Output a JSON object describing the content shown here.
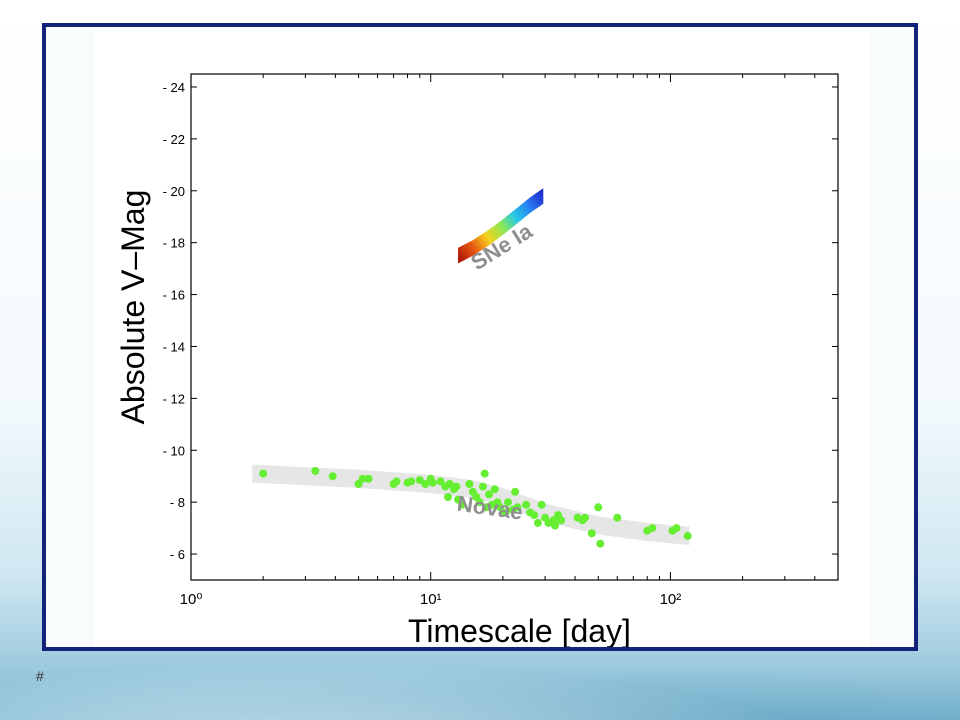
{
  "slide_number": "#",
  "chart_data": {
    "type": "scatter",
    "title": "",
    "xlabel": "Timescale [day]",
    "ylabel": "Absolute V–Mag",
    "xscale": "log",
    "xlim": [
      1,
      500
    ],
    "ylim": [
      5,
      24.5
    ],
    "y_ticks": [
      6,
      8,
      10,
      12,
      14,
      16,
      18,
      20,
      22,
      24
    ],
    "y_tick_labels": [
      "- 6",
      "- 8",
      "- 10",
      "- 12",
      "- 14",
      "- 16",
      "- 18",
      "- 20",
      "- 22",
      "- 24"
    ],
    "x_ticks": [
      1,
      10,
      100
    ],
    "x_tick_labels": [
      "10⁰",
      "10¹",
      "10²"
    ],
    "grid": false,
    "annotations": [
      {
        "text": "SNe Ia",
        "x": 20.5,
        "y": 17.6,
        "color": "#8f8f8f",
        "rotation": -32
      },
      {
        "text": "Novae",
        "x": 17.5,
        "y": 7.5,
        "color": "#8f8f8f",
        "rotation": 8
      }
    ],
    "bands": [
      {
        "name": "SNe Ia",
        "type": "colored_band",
        "x": [
          13,
          15,
          17.5,
          20,
          23,
          26,
          29.5
        ],
        "y_center": [
          17.5,
          17.8,
          18.2,
          18.6,
          19.05,
          19.45,
          19.8
        ],
        "half_width": 0.3,
        "colors": [
          "#b11c08",
          "#e85a12",
          "#f5d320",
          "#8ee850",
          "#27c8e6",
          "#2a7cf2",
          "#1e2fcf"
        ]
      },
      {
        "name": "Novae",
        "type": "envelope",
        "x": [
          1.8,
          5,
          10,
          15,
          20,
          30,
          50,
          80,
          120
        ],
        "y_center": [
          9.1,
          8.9,
          8.7,
          8.5,
          8.2,
          7.6,
          7.1,
          6.85,
          6.7
        ],
        "half_width": 0.35,
        "color": "#e6e6e6"
      }
    ],
    "series": [
      {
        "color": "#66ee33",
        "points": [
          [
            2.0,
            9.1
          ],
          [
            3.3,
            9.2
          ],
          [
            3.9,
            9.0
          ],
          [
            5.0,
            8.7
          ],
          [
            5.2,
            8.9
          ],
          [
            5.5,
            8.9
          ],
          [
            7.0,
            8.7
          ],
          [
            7.2,
            8.8
          ],
          [
            8.0,
            8.75
          ],
          [
            8.3,
            8.8
          ],
          [
            9.0,
            8.85
          ],
          [
            9.5,
            8.7
          ],
          [
            10.0,
            8.9
          ],
          [
            10.2,
            8.75
          ],
          [
            11.0,
            8.8
          ],
          [
            11.5,
            8.6
          ],
          [
            12.0,
            8.7
          ],
          [
            12.5,
            8.5
          ],
          [
            12.8,
            8.6
          ],
          [
            11.8,
            8.2
          ],
          [
            13.0,
            8.1
          ],
          [
            13.5,
            7.9
          ],
          [
            14.5,
            8.7
          ],
          [
            15.0,
            8.4
          ],
          [
            15.5,
            8.2
          ],
          [
            16.0,
            8.0
          ],
          [
            16.5,
            8.6
          ],
          [
            16.8,
            9.1
          ],
          [
            17.0,
            7.8
          ],
          [
            17.5,
            8.3
          ],
          [
            18.0,
            7.9
          ],
          [
            18.5,
            8.5
          ],
          [
            19.0,
            8.0
          ],
          [
            19.5,
            7.8
          ],
          [
            20.5,
            7.6
          ],
          [
            21.0,
            8.0
          ],
          [
            22.0,
            7.7
          ],
          [
            22.5,
            8.4
          ],
          [
            23.0,
            7.8
          ],
          [
            25.0,
            7.9
          ],
          [
            26.0,
            7.6
          ],
          [
            27.0,
            7.5
          ],
          [
            28.0,
            7.2
          ],
          [
            29.0,
            7.9
          ],
          [
            30.0,
            7.4
          ],
          [
            31.0,
            7.2
          ],
          [
            32.5,
            7.3
          ],
          [
            33.0,
            7.1
          ],
          [
            34.0,
            7.5
          ],
          [
            35.0,
            7.3
          ],
          [
            41.0,
            7.4
          ],
          [
            43.0,
            7.3
          ],
          [
            44.0,
            7.4
          ],
          [
            47.0,
            6.8
          ],
          [
            50.0,
            7.8
          ],
          [
            51.0,
            6.4
          ],
          [
            60.0,
            7.4
          ],
          [
            80.0,
            6.9
          ],
          [
            84.0,
            7.0
          ],
          [
            102.0,
            6.9
          ],
          [
            106.0,
            7.0
          ],
          [
            118.0,
            6.7
          ]
        ]
      }
    ]
  }
}
